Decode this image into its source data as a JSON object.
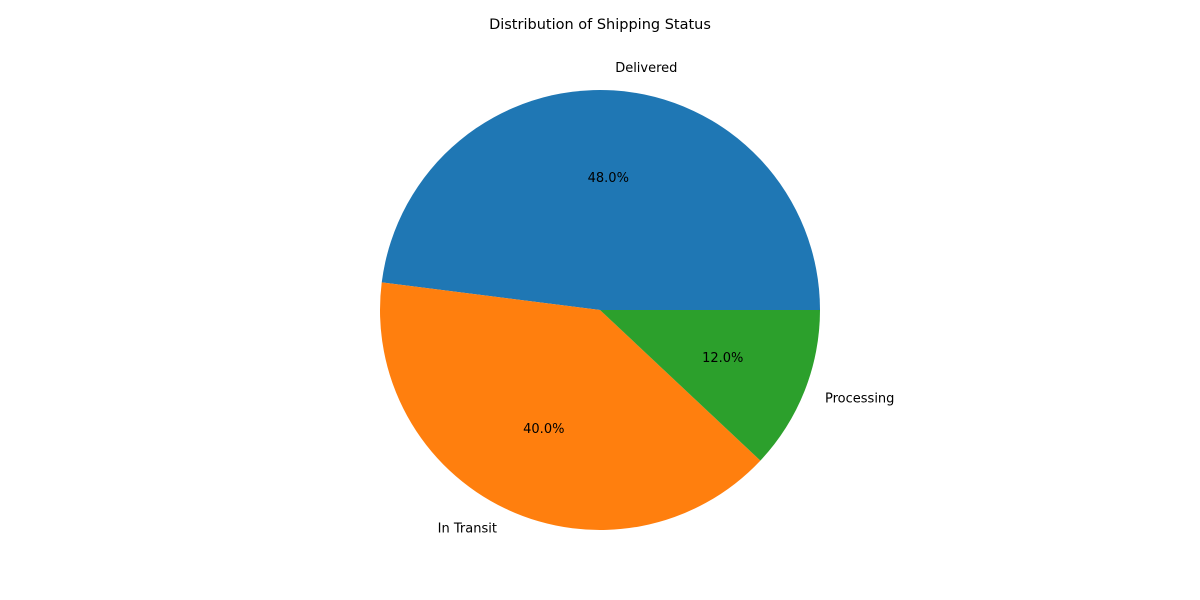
{
  "chart_data": {
    "type": "pie",
    "title": "Distribution of Shipping Status",
    "categories": [
      "Delivered",
      "In Transit",
      "Processing"
    ],
    "values": [
      48.0,
      40.0,
      12.0
    ],
    "percent_labels": [
      "48.0%",
      "40.0%",
      "12.0%"
    ],
    "colors": [
      "#1f77b4",
      "#ff7f0e",
      "#2ca02c"
    ],
    "start_angle_deg": 0,
    "direction": "counterclockwise",
    "legend": "none"
  }
}
